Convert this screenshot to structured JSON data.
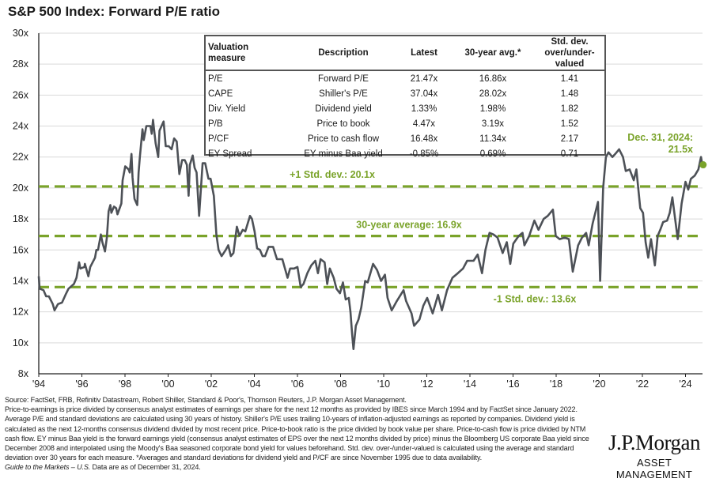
{
  "title": "S&P 500 Index: Forward P/E ratio",
  "chart_data": {
    "type": "line",
    "title": "S&P 500 Index: Forward P/E ratio",
    "xlabel": "",
    "ylabel": "",
    "xlim": [
      1994,
      2024.8
    ],
    "ylim": [
      8,
      30
    ],
    "yticks": [
      8,
      10,
      12,
      14,
      16,
      18,
      20,
      22,
      24,
      26,
      28,
      30
    ],
    "ytick_labels": [
      "8x",
      "10x",
      "12x",
      "14x",
      "16x",
      "18x",
      "20x",
      "22x",
      "24x",
      "26x",
      "28x",
      "30x"
    ],
    "xticks": [
      1994,
      1996,
      1998,
      2000,
      2002,
      2004,
      2006,
      2008,
      2010,
      2012,
      2014,
      2016,
      2018,
      2020,
      2022,
      2024
    ],
    "xtick_labels": [
      "'94",
      "'96",
      "'98",
      "'00",
      "'02",
      "'04",
      "'06",
      "'08",
      "'10",
      "'12",
      "'14",
      "'16",
      "'18",
      "'20",
      "'22",
      "'24"
    ],
    "grid": true,
    "series": [
      {
        "name": "Forward P/E",
        "color": "#4d5157",
        "x": [
          1994.0,
          1994.04,
          1994.22,
          1994.34,
          1994.47,
          1994.65,
          1994.73,
          1994.89,
          1995.08,
          1995.24,
          1995.38,
          1995.63,
          1995.75,
          1995.87,
          1995.93,
          1996.12,
          1996.14,
          1996.3,
          1996.39,
          1996.61,
          1996.67,
          1996.75,
          1996.88,
          1996.95,
          1997.07,
          1997.16,
          1997.24,
          1997.32,
          1997.37,
          1997.49,
          1997.59,
          1997.65,
          1997.83,
          1997.89,
          1998.01,
          1998.17,
          1998.22,
          1998.3,
          1998.35,
          1998.44,
          1998.57,
          1998.63,
          1998.69,
          1998.81,
          1998.87,
          1998.99,
          1999.18,
          1999.24,
          1999.3,
          1999.42,
          1999.54,
          1999.6,
          1999.79,
          1999.89,
          2000.03,
          2000.16,
          2000.28,
          2000.4,
          2000.52,
          2000.65,
          2000.77,
          2000.87,
          2000.95,
          2001.01,
          2001.14,
          2001.23,
          2001.32,
          2001.44,
          2001.6,
          2001.72,
          2001.87,
          2001.97,
          2002.12,
          2002.24,
          2002.34,
          2002.48,
          2002.67,
          2002.79,
          2002.91,
          2003.03,
          2003.19,
          2003.31,
          2003.46,
          2003.58,
          2003.8,
          2003.89,
          2004.01,
          2004.13,
          2004.26,
          2004.38,
          2004.5,
          2004.66,
          2004.87,
          2005.05,
          2005.3,
          2005.42,
          2005.54,
          2005.66,
          2005.85,
          2006.0,
          2006.15,
          2006.28,
          2006.46,
          2006.64,
          2006.83,
          2006.95,
          2007.07,
          2007.26,
          2007.38,
          2007.5,
          2007.68,
          2007.81,
          2007.97,
          2008.11,
          2008.24,
          2008.38,
          2008.46,
          2008.54,
          2008.6,
          2008.71,
          2008.83,
          2008.96,
          2009.14,
          2009.26,
          2009.51,
          2009.69,
          2009.88,
          2010.06,
          2010.18,
          2010.37,
          2010.61,
          2010.92,
          2011.04,
          2011.29,
          2011.41,
          2011.66,
          2011.84,
          2012.02,
          2012.27,
          2012.52,
          2012.7,
          2012.94,
          2013.19,
          2013.44,
          2013.68,
          2013.87,
          2014.17,
          2014.36,
          2014.56,
          2014.72,
          2014.91,
          2015.09,
          2015.28,
          2015.52,
          2015.71,
          2015.87,
          2016.01,
          2016.26,
          2016.44,
          2016.53,
          2016.75,
          2016.99,
          2017.18,
          2017.42,
          2017.61,
          2017.85,
          2017.98,
          2018.16,
          2018.4,
          2018.59,
          2018.77,
          2019.02,
          2019.2,
          2019.39,
          2019.51,
          2019.69,
          2019.94,
          2020.04,
          2020.12,
          2020.18,
          2020.31,
          2020.43,
          2020.61,
          2020.74,
          2020.92,
          2021.1,
          2021.23,
          2021.41,
          2021.6,
          2021.72,
          2021.9,
          2022.03,
          2022.15,
          2022.27,
          2022.4,
          2022.58,
          2022.71,
          2022.83,
          2022.96,
          2023.15,
          2023.27,
          2023.39,
          2023.52,
          2023.64,
          2023.82,
          2024.0,
          2024.13,
          2024.25,
          2024.43,
          2024.6,
          2024.72,
          2024.78
        ],
        "y": [
          14.3,
          13.5,
          13.4,
          13.0,
          13.0,
          12.5,
          12.1,
          12.5,
          12.6,
          13.1,
          13.5,
          13.8,
          14.2,
          15.2,
          14.8,
          14.9,
          15.1,
          14.3,
          14.9,
          15.5,
          16.0,
          16.0,
          17.0,
          16.5,
          15.9,
          16.8,
          18.5,
          18.9,
          18.4,
          18.8,
          18.7,
          18.3,
          19.0,
          20.5,
          21.4,
          21.2,
          21.0,
          22.2,
          20.7,
          19.3,
          18.9,
          21.0,
          22.0,
          23.8,
          23.1,
          24.0,
          24.0,
          23.5,
          24.4,
          22.9,
          22.0,
          23.7,
          24.3,
          22.7,
          22.7,
          22.5,
          23.2,
          23.0,
          20.9,
          21.8,
          21.8,
          21.5,
          19.5,
          21.5,
          22.1,
          21.3,
          21.0,
          18.2,
          21.6,
          21.6,
          20.6,
          20.6,
          19.5,
          17.0,
          16.0,
          15.6,
          16.0,
          16.3,
          15.6,
          15.8,
          17.5,
          16.9,
          17.3,
          17.2,
          18.2,
          18.0,
          17.2,
          16.1,
          16.0,
          15.6,
          15.6,
          16.2,
          16.2,
          15.4,
          15.4,
          14.8,
          14.2,
          14.8,
          14.8,
          14.9,
          13.6,
          13.8,
          14.5,
          15.0,
          15.3,
          14.5,
          15.4,
          15.2,
          13.8,
          14.8,
          14.2,
          13.5,
          13.2,
          13.9,
          12.8,
          12.9,
          12.0,
          10.5,
          9.6,
          11.1,
          11.5,
          12.3,
          14.0,
          13.9,
          15.1,
          14.7,
          14.0,
          14.4,
          12.9,
          12.1,
          12.7,
          13.4,
          12.7,
          11.9,
          11.1,
          11.5,
          12.4,
          12.9,
          11.9,
          13.1,
          12.1,
          13.4,
          14.2,
          14.5,
          14.8,
          15.3,
          15.3,
          15.7,
          14.5,
          16.0,
          17.1,
          17.0,
          16.8,
          15.8,
          16.5,
          15.1,
          16.4,
          16.9,
          17.1,
          16.3,
          16.9,
          17.9,
          17.3,
          18.0,
          18.2,
          18.6,
          16.9,
          16.7,
          16.8,
          16.7,
          14.6,
          16.3,
          16.8,
          17.1,
          16.3,
          17.7,
          19.1,
          14.0,
          17.5,
          20.0,
          22.0,
          22.3,
          22.0,
          22.2,
          22.5,
          22.0,
          21.1,
          21.2,
          20.5,
          21.2,
          18.7,
          18.4,
          16.5,
          15.5,
          16.7,
          15.0,
          16.9,
          17.3,
          17.8,
          17.9,
          18.4,
          19.4,
          18.0,
          16.7,
          19.0,
          20.4,
          19.9,
          20.6,
          20.8,
          21.2,
          22.0,
          21.5
        ]
      }
    ],
    "reference_lines": [
      {
        "name": "+1 Std. dev.",
        "value": 20.1,
        "label": "+1 Std. dev.: 20.1x"
      },
      {
        "name": "30-year average",
        "value": 16.9,
        "label": "30-year average: 16.9x"
      },
      {
        "name": "-1 Std. dev.",
        "value": 13.6,
        "label": "-1 Std. dev.: 13.6x"
      }
    ],
    "annotation": {
      "line1": "Dec. 31, 2024:",
      "line2": "21.5x",
      "x": 2024.78,
      "y": 21.5
    },
    "accent_color": "#7aa32a"
  },
  "table": {
    "headers": [
      "Valuation measure",
      "Description",
      "Latest",
      "30-year avg.*",
      "Std. dev. over/under-valued"
    ],
    "rows": [
      [
        "P/E",
        "Forward P/E",
        "21.47x",
        "16.86x",
        "1.41"
      ],
      [
        "CAPE",
        "Shiller's P/E",
        "37.04x",
        "28.02x",
        "1.48"
      ],
      [
        "Div. Yield",
        "Dividend yield",
        "1.33%",
        "1.98%",
        "1.82"
      ],
      [
        "P/B",
        "Price to book",
        "4.47x",
        "3.19x",
        "1.52"
      ],
      [
        "P/CF",
        "Price to cash flow",
        "16.48x",
        "11.34x",
        "2.17"
      ],
      [
        "EY Spread",
        "EY minus Baa yield",
        "-0.85%",
        "0.69%",
        "0.71"
      ]
    ]
  },
  "footer": {
    "source": "Source: FactSet, FRB, Refinitiv Datastream, Robert Shiller, Standard & Poor's, Thomson Reuters, J.P. Morgan Asset Management.",
    "notes": "Price-to-earnings is price divided by consensus analyst estimates of earnings per share for the next 12 months as provided by IBES since March 1994 and by FactSet since January 2022. Average P/E and standard deviations are calculated using 30 years of history. Shiller's P/E uses trailing 10-years of inflation-adjusted earnings as reported by companies. Dividend yield is calculated as the next 12-months consensus dividend divided by most recent price. Price-to-book ratio is the price divided by book value per share. Price-to-cash flow is price divided by NTM cash flow. EY minus Baa yield is the forward earnings yield (consensus analyst estimates of EPS over the next 12 months divided by price) minus the Bloomberg US corporate Baa yield since December 2008 and interpolated using the Moody's Baa seasoned corporate bond yield for values beforehand. Std. dev. over-/under-valued is calculated using the average and standard deviation over 30 years for each measure. *Averages and standard deviations for dividend yield and P/CF are since November 1995 due to data availability.",
    "guide": "Guide to the Markets – U.S.",
    "data_as_of": " Data are as of December 31, 2024."
  },
  "logo": {
    "name": "J.P.Morgan",
    "tagline": "ASSET MANAGEMENT"
  }
}
